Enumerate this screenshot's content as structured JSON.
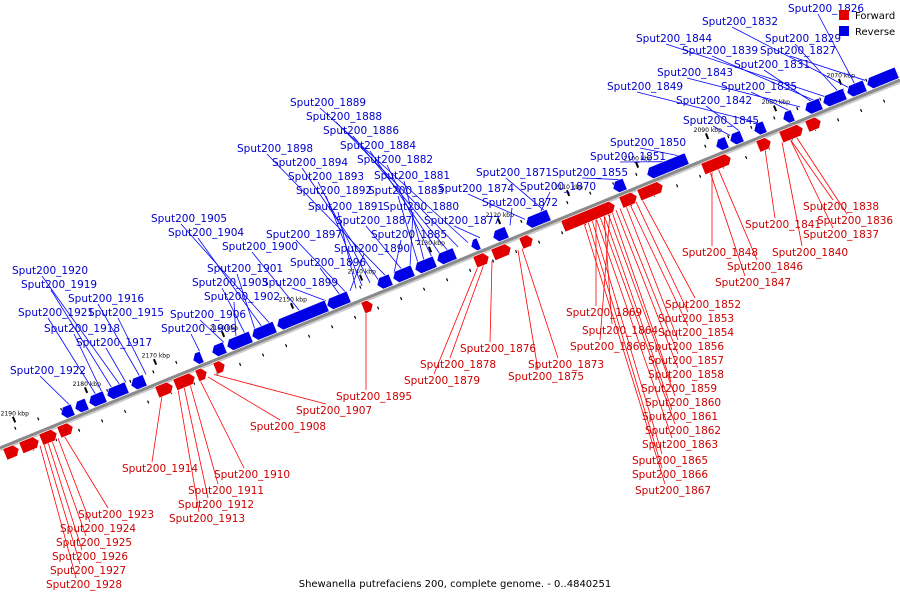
{
  "caption": "Shewanella putrefaciens 200, complete genome. - 0..4840251",
  "legend": [
    {
      "label": "Forward",
      "color": "#e00000"
    },
    {
      "label": "Reverse",
      "color": "#0000e6"
    }
  ],
  "colors": {
    "forward": "#e00000",
    "reverse": "#0000e6",
    "forward_label": "#cc0000",
    "reverse_label": "#0000cc",
    "track": "#8a8a8a"
  },
  "ticks": [
    "2070 kbp",
    "2080 kbp",
    "2090 kbp",
    "2100 kbp",
    "2110 kbp",
    "2120 kbp",
    "2130 kbp",
    "2140 kbp",
    "2150 kbp",
    "2160 kbp",
    "2170 kbp",
    "2180 kbp",
    "2190 kbp"
  ],
  "reverse_genes": [
    "Sput200_1826",
    "Sput200_1827",
    "Sput200_1829",
    "Sput200_1831",
    "Sput200_1832",
    "Sput200_1835",
    "Sput200_1839",
    "Sput200_1842",
    "Sput200_1843",
    "Sput200_1844",
    "Sput200_1845",
    "Sput200_1849",
    "Sput200_1850",
    "Sput200_1851",
    "Sput200_1855",
    "Sput200_1870",
    "Sput200_1871",
    "Sput200_1872",
    "Sput200_1874",
    "Sput200_1877",
    "Sput200_1880",
    "Sput200_1881",
    "Sput200_1882",
    "Sput200_1883",
    "Sput200_1884",
    "Sput200_1885",
    "Sput200_1886",
    "Sput200_1887",
    "Sput200_1888",
    "Sput200_1889",
    "Sput200_1890",
    "Sput200_1891",
    "Sput200_1892",
    "Sput200_1893",
    "Sput200_1894",
    "Sput200_1896",
    "Sput200_1897",
    "Sput200_1898",
    "Sput200_1899",
    "Sput200_1900",
    "Sput200_1901",
    "Sput200_1902",
    "Sput200_1903",
    "Sput200_1904",
    "Sput200_1905",
    "Sput200_1906",
    "Sput200_1909",
    "Sput200_1915",
    "Sput200_1916",
    "Sput200_1917",
    "Sput200_1918",
    "Sput200_1919",
    "Sput200_1920",
    "Sput200_1921",
    "Sput200_1922"
  ],
  "forward_genes": [
    "Sput200_1836",
    "Sput200_1837",
    "Sput200_1838",
    "Sput200_1840",
    "Sput200_1841",
    "Sput200_1846",
    "Sput200_1847",
    "Sput200_1848",
    "Sput200_1852",
    "Sput200_1853",
    "Sput200_1854",
    "Sput200_1856",
    "Sput200_1857",
    "Sput200_1858",
    "Sput200_1859",
    "Sput200_1860",
    "Sput200_1861",
    "Sput200_1862",
    "Sput200_1863",
    "Sput200_1864",
    "Sput200_1865",
    "Sput200_1866",
    "Sput200_1867",
    "Sput200_1868",
    "Sput200_1869",
    "Sput200_1873",
    "Sput200_1875",
    "Sput200_1876",
    "Sput200_1878",
    "Sput200_1879",
    "Sput200_1895",
    "Sput200_1907",
    "Sput200_1908",
    "Sput200_1910",
    "Sput200_1911",
    "Sput200_1912",
    "Sput200_1913",
    "Sput200_1914",
    "Sput200_1923",
    "Sput200_1924",
    "Sput200_1925",
    "Sput200_1926",
    "Sput200_1927",
    "Sput200_1928"
  ]
}
